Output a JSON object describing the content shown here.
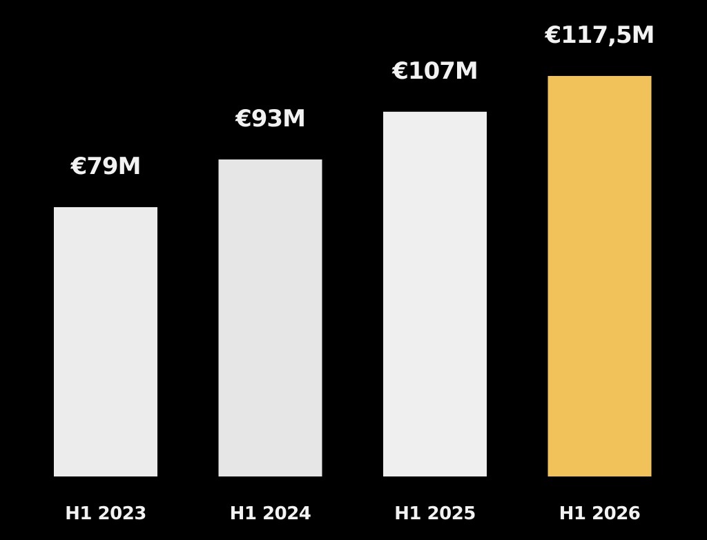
{
  "chart_data": {
    "type": "bar",
    "categories": [
      "H1 2023",
      "H1 2024",
      "H1 2025",
      "H1 2026"
    ],
    "values": [
      79,
      93,
      107,
      117.5
    ],
    "value_labels": [
      "€79M",
      "€93M",
      "€107M",
      "€117,5M"
    ],
    "unit": "€M",
    "colors": [
      "#ececec",
      "#e6e6e6",
      "#efefef",
      "#f1c15a"
    ],
    "background": "#000000",
    "ylim": [
      0,
      117.5
    ],
    "grid": false,
    "legend": "none"
  }
}
